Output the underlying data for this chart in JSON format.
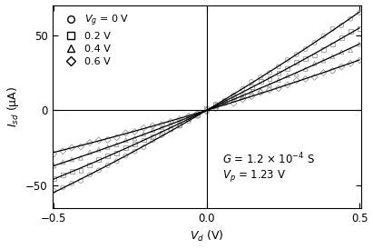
{
  "G": 0.00012,
  "Vp": 1.23,
  "Vg_values": [
    0.0,
    0.2,
    0.4,
    0.6
  ],
  "markers": [
    "o",
    "s",
    "^",
    "D"
  ],
  "Vd_min": -0.5,
  "Vd_max": 0.5,
  "Isd_min": -65,
  "Isd_max": 70,
  "yticks": [
    -50,
    0,
    50
  ],
  "xticks": [
    -0.5,
    0,
    0.5
  ],
  "line_color": "black",
  "marker_color": "#999999",
  "marker_size": 3.5,
  "n_scatter": 35,
  "n_line": 300,
  "alpha_nonlin": 0.18,
  "noise_std": 0.6
}
